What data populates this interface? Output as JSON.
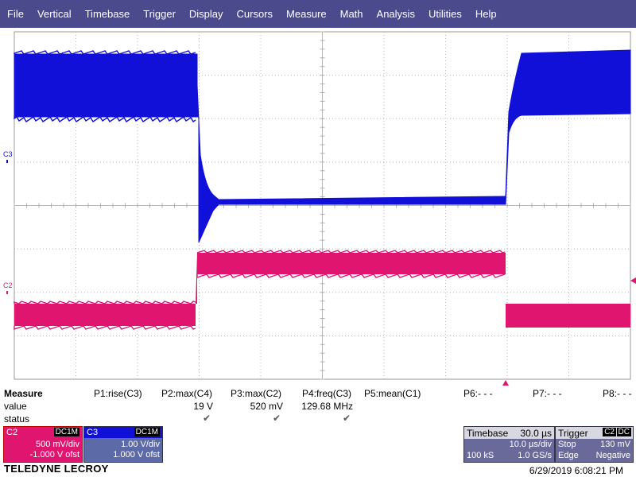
{
  "menu": [
    "File",
    "Vertical",
    "Timebase",
    "Trigger",
    "Display",
    "Cursors",
    "Measure",
    "Math",
    "Analysis",
    "Utilities",
    "Help"
  ],
  "markers": {
    "c3": "C3",
    "c2": "C2"
  },
  "measure": {
    "title": "Measure",
    "row_value": "value",
    "row_status": "status",
    "params": [
      {
        "label": "P1:rise(C3)",
        "value": "",
        "status": ""
      },
      {
        "label": "P2:max(C4)",
        "value": "19 V",
        "status": "✔"
      },
      {
        "label": "P3:max(C2)",
        "value": "520 mV",
        "status": "✔"
      },
      {
        "label": "P4:freq(C3)",
        "value": "129.68 MHz",
        "status": "✔"
      },
      {
        "label": "P5:mean(C1)",
        "value": "",
        "status": ""
      },
      {
        "label": "P6:- - -",
        "value": "",
        "status": ""
      },
      {
        "label": "P7:- - -",
        "value": "",
        "status": ""
      },
      {
        "label": "P8:- - -",
        "value": "",
        "status": ""
      }
    ]
  },
  "c2_box": {
    "name": "C2",
    "coupling": "DC1M",
    "vdiv": "500 mV/div",
    "offset": "-1.000 V ofst",
    "color": "#e0156f"
  },
  "c3_box": {
    "name": "C3",
    "coupling": "DC1M",
    "vdiv": "1.00 V/div",
    "offset": "1.000 V ofst",
    "color": "#1010d8"
  },
  "timebase": {
    "title": "Timebase",
    "delay": "30.0 µs",
    "tdiv": "10.0 µs/div",
    "samples": "100 kS",
    "rate": "1.0 GS/s"
  },
  "trigger": {
    "title": "Trigger",
    "source": "C2",
    "coupling": "DC",
    "mode": "Stop",
    "level": "130 mV",
    "type": "Edge",
    "slope": "Negative"
  },
  "brand": "TELEDYNE LECROY",
  "datetime": "6/29/2019 6:08:21 PM",
  "colors": {
    "menu_bg": "#4a4a8c",
    "c3": "#1010d8",
    "c2": "#e0156f",
    "panel_header": "#5a5aa0"
  }
}
